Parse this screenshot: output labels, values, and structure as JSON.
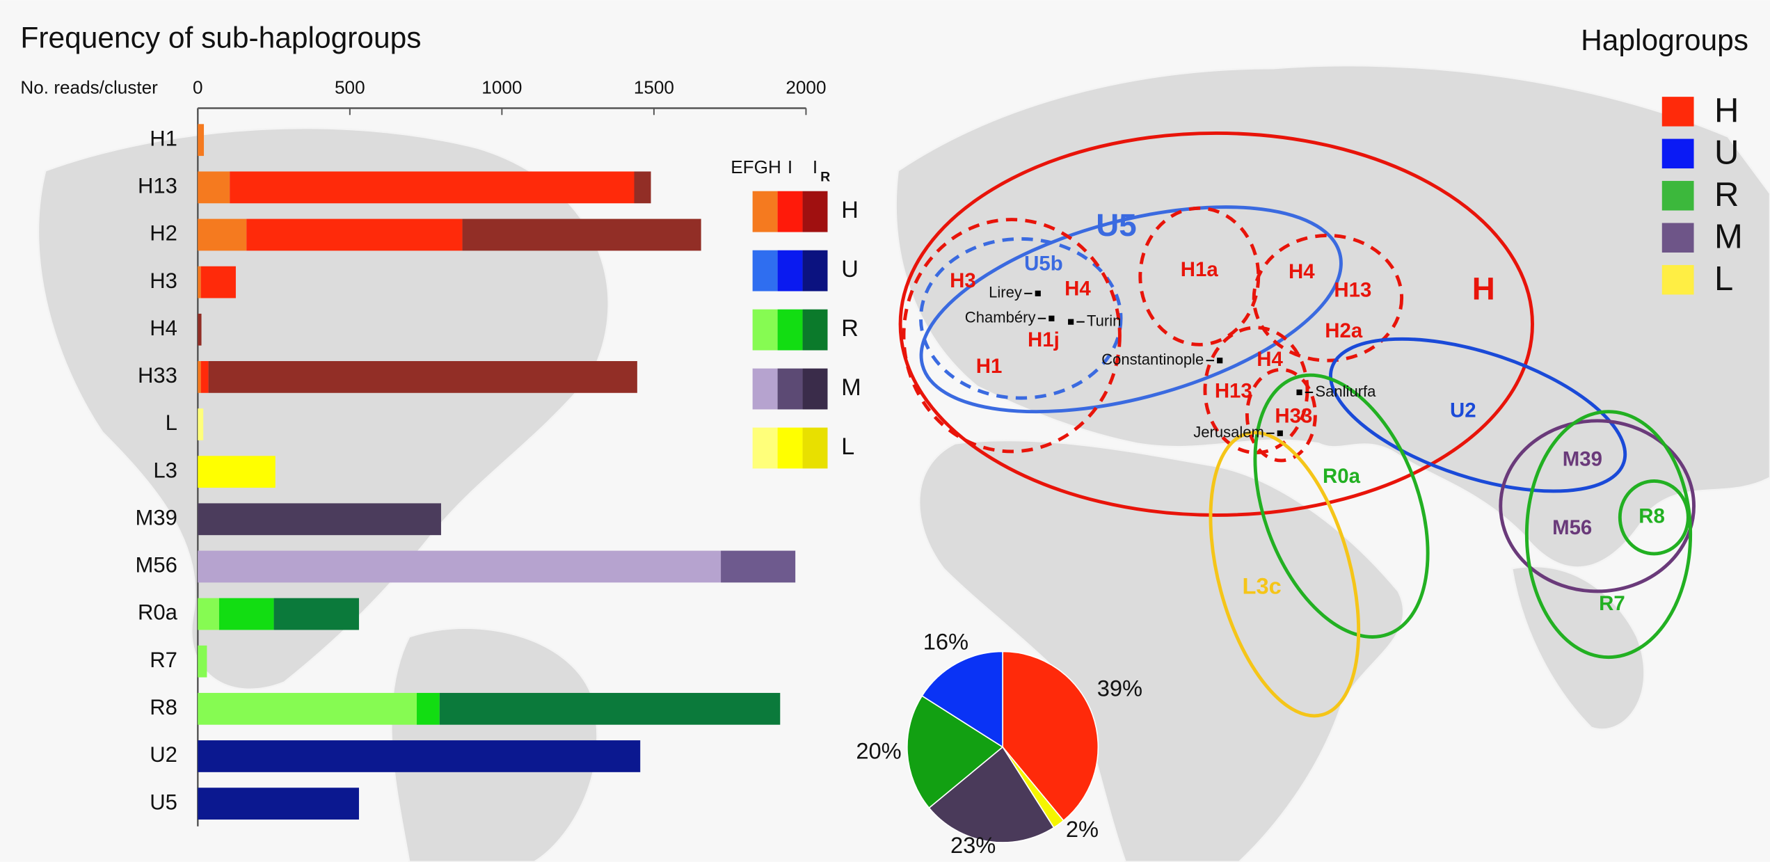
{
  "chart_data": [
    {
      "type": "bar",
      "orientation": "horizontal",
      "stacked": true,
      "title": "Frequency of sub-haplogroups",
      "x_label": "No. reads/cluster",
      "categories": [
        "H1",
        "H13",
        "H2",
        "H3",
        "H4",
        "H33",
        "L",
        "L3",
        "M39",
        "M56",
        "R0a",
        "R7",
        "R8",
        "U2",
        "U5"
      ],
      "series": [
        {
          "name": "EFGH",
          "values": [
            20,
            105,
            160,
            10,
            0,
            10,
            18,
            0,
            0,
            1720,
            70,
            30,
            720,
            0,
            0
          ],
          "colors": [
            "#f57a1f",
            "#f57a1f",
            "#f57a1f",
            "#f57a1f",
            "#f57a1f",
            "#f57a1f",
            "#ffff7a",
            "#ffff7a",
            "#b6a3cf",
            "#b6a3cf",
            "#86fb52",
            "#86fb52",
            "#86fb52",
            "#2f6ef0",
            "#2f6ef0"
          ]
        },
        {
          "name": "I",
          "values": [
            0,
            1330,
            710,
            115,
            0,
            25,
            0,
            255,
            800,
            245,
            180,
            0,
            75,
            0,
            0
          ],
          "colors": [
            "#ff2a0a",
            "#ff2a0a",
            "#ff2a0a",
            "#ff2a0a",
            "#ff2a0a",
            "#ff2a0a",
            "#ffff00",
            "#ffff00",
            "#4b3c5c",
            "#6e5a8e",
            "#12dd12",
            "#12dd12",
            "#12dd12",
            "#0a1af0",
            "#0a1af0"
          ]
        },
        {
          "name": "I",
          "subscript": "R",
          "values": [
            0,
            55,
            785,
            0,
            12,
            1410,
            0,
            0,
            0,
            0,
            280,
            0,
            1120,
            1455,
            530
          ],
          "colors": [
            "#922e26",
            "#922e26",
            "#922e26",
            "#922e26",
            "#922e26",
            "#922e26",
            "#e8e000",
            "#e8e000",
            "#3a2c4a",
            "#3a2c4a",
            "#0b7a3b",
            "#0b7a3b",
            "#0b7a3b",
            "#0b1890",
            "#0b1890"
          ]
        }
      ],
      "xlim": [
        0,
        2000
      ],
      "xticks": [
        0,
        500,
        1000,
        1500,
        2000
      ],
      "legend": {
        "rows": [
          {
            "name": "H",
            "colors": [
              "#f57a1f",
              "#ff1a0a",
              "#a01010"
            ]
          },
          {
            "name": "U",
            "colors": [
              "#2f6ef0",
              "#0a1af0",
              "#0b1280"
            ]
          },
          {
            "name": "R",
            "colors": [
              "#86fb52",
              "#12dd12",
              "#0b7a2b"
            ]
          },
          {
            "name": "M",
            "colors": [
              "#b6a3cf",
              "#5c4a74",
              "#3a2c4a"
            ]
          },
          {
            "name": "L",
            "colors": [
              "#ffff7a",
              "#ffff00",
              "#e8e000"
            ]
          }
        ]
      }
    },
    {
      "type": "pie",
      "values": [
        39,
        2,
        23,
        20,
        16
      ],
      "value_labels": [
        "39%",
        "2%",
        "23%",
        "20%",
        "16%"
      ],
      "colors": [
        "#ff2a0a",
        "#f5f500",
        "#4a3a5a",
        "#12a012",
        "#0a33f5"
      ]
    }
  ],
  "haplogroup_legend": {
    "title": "Haplogroups",
    "items": [
      {
        "name": "H",
        "color": "#ff2a0a"
      },
      {
        "name": "U",
        "color": "#0a1af5"
      },
      {
        "name": "R",
        "color": "#3cb83c"
      },
      {
        "name": "M",
        "color": "#6e5588"
      },
      {
        "name": "L",
        "color": "#ffee44"
      }
    ]
  },
  "map": {
    "regions": [
      {
        "label": "U5",
        "color": "#3a6ae0"
      },
      {
        "label": "U5b",
        "color": "#3a6ae0"
      },
      {
        "label": "H3",
        "color": "#e8140a"
      },
      {
        "label": "H4",
        "color": "#e8140a"
      },
      {
        "label": "H1j",
        "color": "#e8140a"
      },
      {
        "label": "H1",
        "color": "#e8140a"
      },
      {
        "label": "H1a",
        "color": "#e8140a"
      },
      {
        "label": "H4",
        "color": "#e8140a"
      },
      {
        "label": "H13",
        "color": "#e8140a"
      },
      {
        "label": "H2a",
        "color": "#e8140a"
      },
      {
        "label": "H4",
        "color": "#e8140a"
      },
      {
        "label": "H13",
        "color": "#e8140a"
      },
      {
        "label": "H33",
        "color": "#e8140a"
      },
      {
        "label": "H",
        "color": "#e8140a"
      },
      {
        "label": "U2",
        "color": "#1a4ad8"
      },
      {
        "label": "R0a",
        "color": "#22b022"
      },
      {
        "label": "L3c",
        "color": "#f5c518"
      },
      {
        "label": "M39",
        "color": "#6a3a7a"
      },
      {
        "label": "M56",
        "color": "#6a3a7a"
      },
      {
        "label": "R8",
        "color": "#22b022"
      },
      {
        "label": "R7",
        "color": "#22b022"
      }
    ],
    "cities": [
      "Lirey",
      "Chambéry",
      "Turin",
      "Constantinople",
      "Sanliurfa",
      "Jerusalem"
    ]
  }
}
